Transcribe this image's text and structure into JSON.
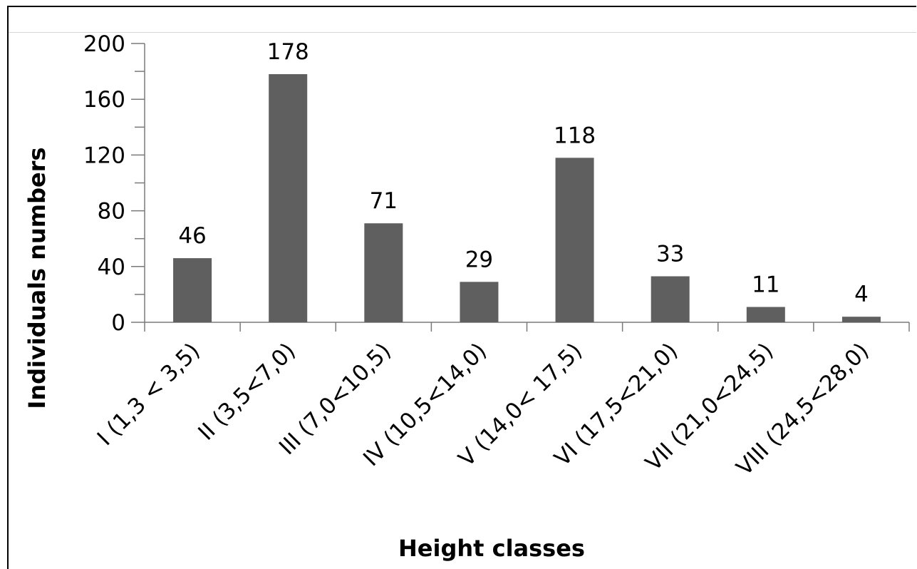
{
  "chart_data": {
    "type": "bar",
    "categories": [
      "I (1,3 < 3,5)",
      "II (3,5<7,0)",
      "III (7,0<10,5)",
      "IV (10,5<14,0)",
      "V (14,0< 17,5)",
      "VI (17,5<21,0)",
      "VII (21,0<24,5)",
      "VIII (24,5<28,0)"
    ],
    "values": [
      46,
      178,
      71,
      29,
      118,
      33,
      11,
      4
    ],
    "data_labels": [
      "46",
      "178",
      "71",
      "29",
      "118",
      "33",
      "11",
      "4"
    ],
    "xlabel": "Height classes",
    "ylabel": "Individuals numbers",
    "ylim": [
      0,
      200
    ],
    "yticks": [
      0,
      40,
      80,
      120,
      160,
      200
    ],
    "grid": false,
    "legend": "none",
    "bar_color": "#5f5f5f"
  }
}
